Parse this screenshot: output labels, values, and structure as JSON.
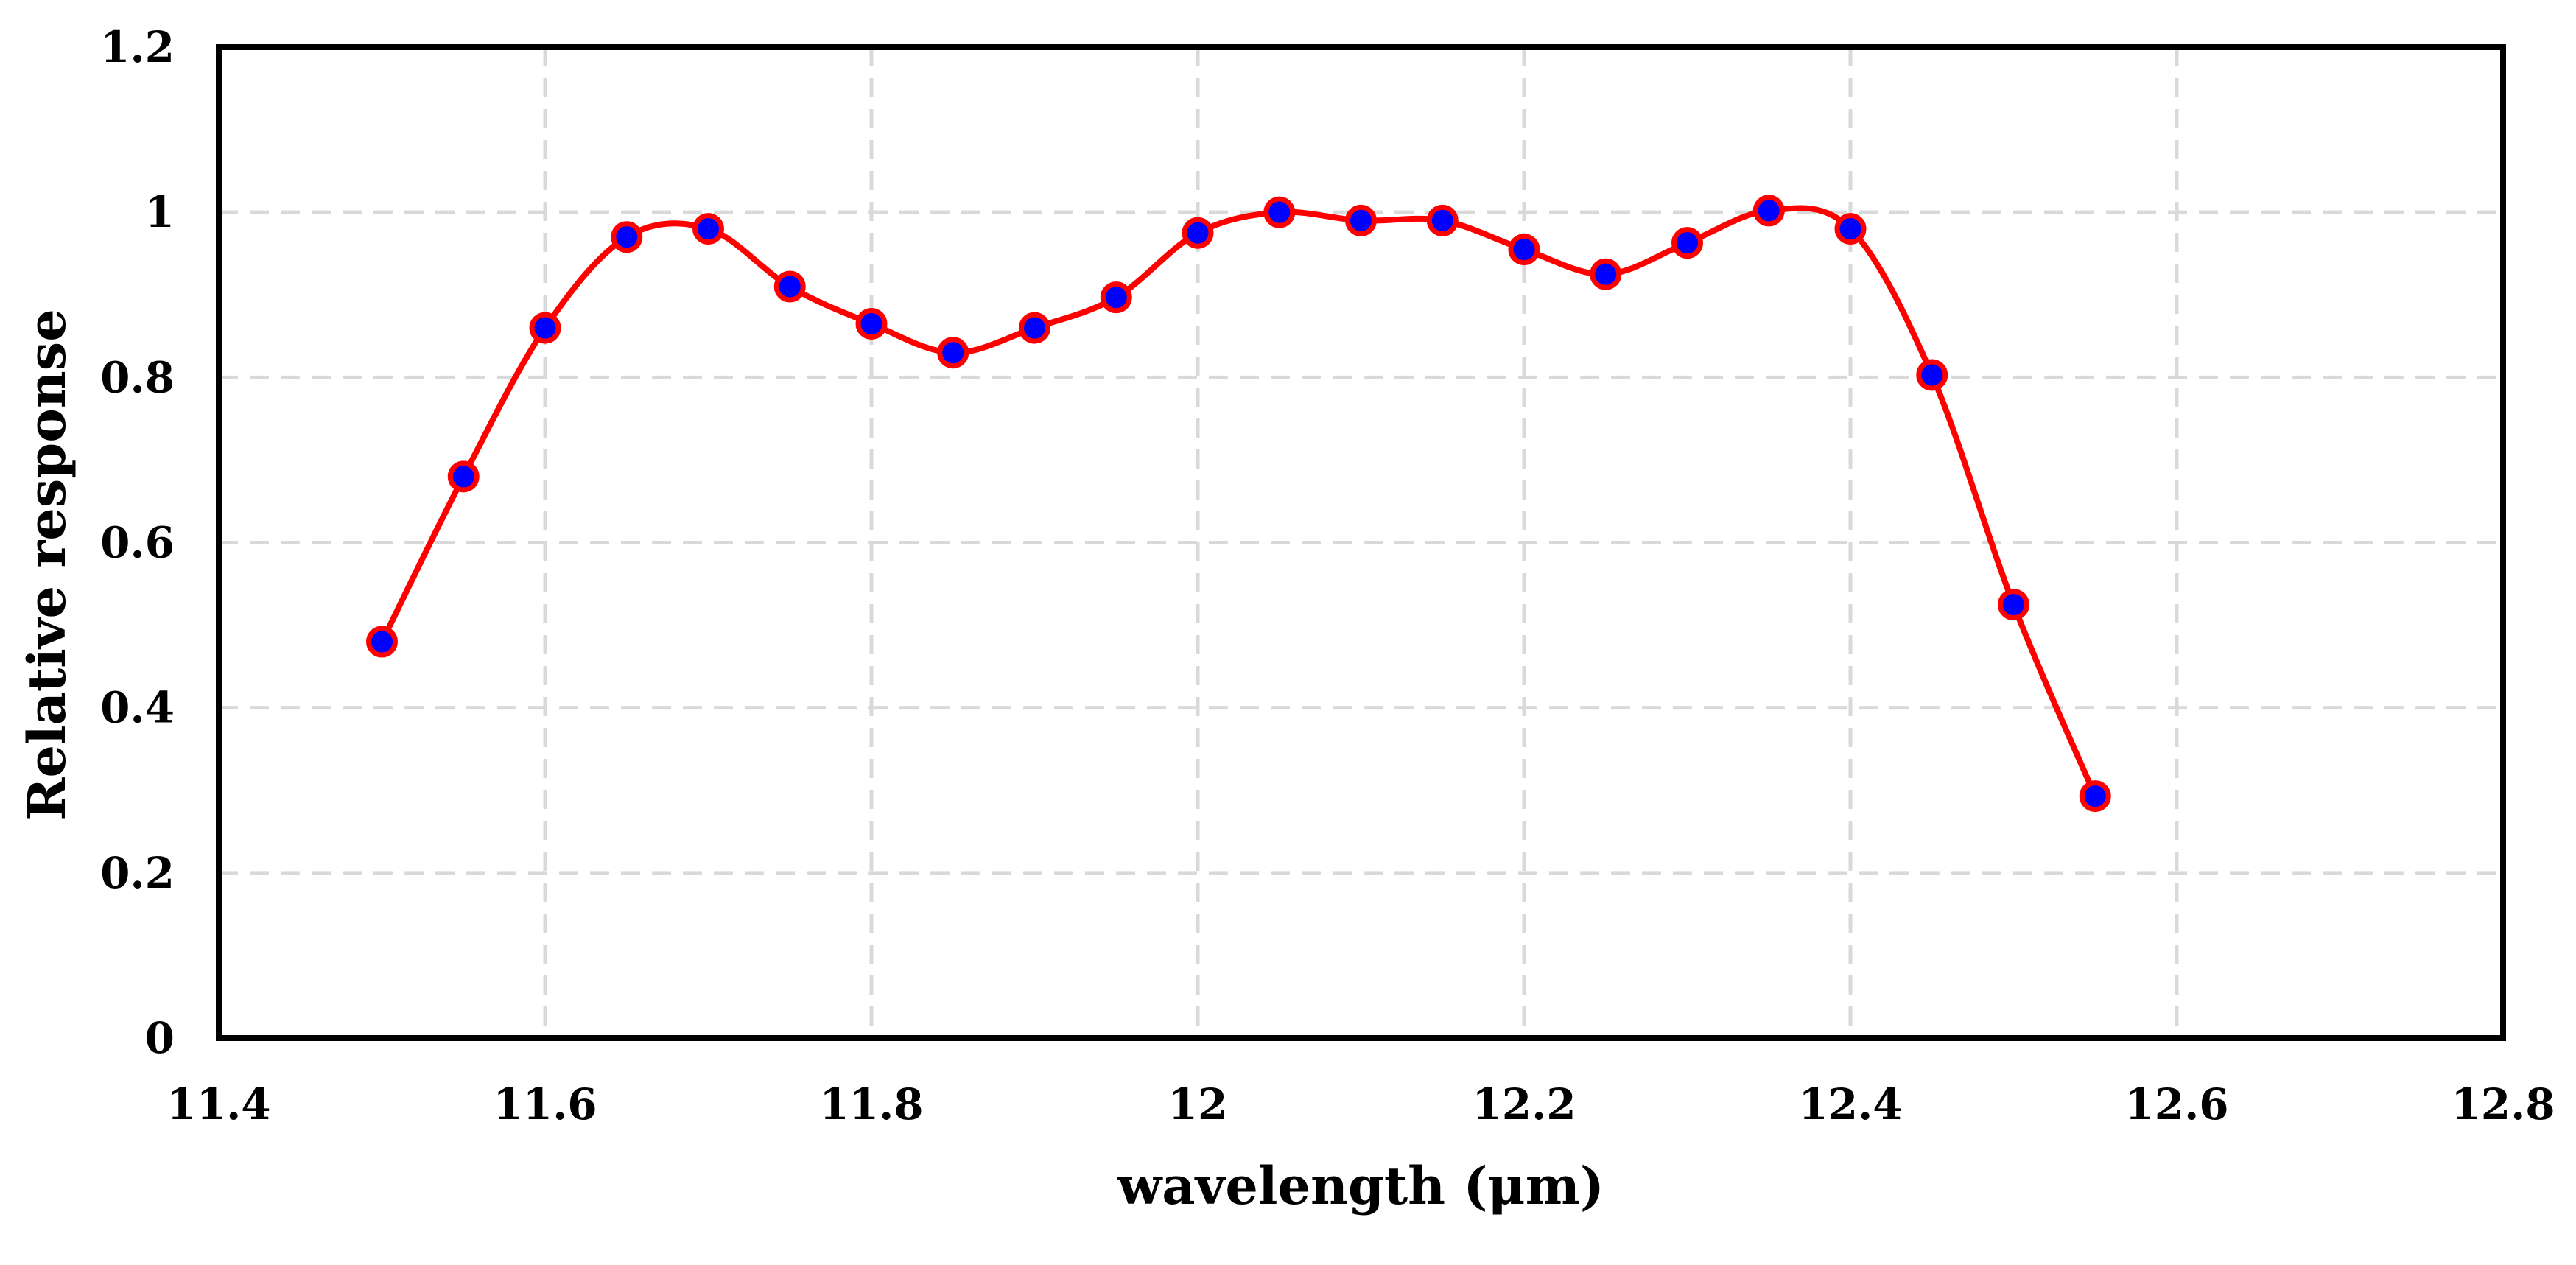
{
  "chart_data": {
    "type": "line",
    "title": "",
    "xlabel": "wavelength (μm)",
    "ylabel": "Relative response",
    "xlim": [
      11.4,
      12.8
    ],
    "ylim": [
      0,
      1.2
    ],
    "x_ticks": [
      11.4,
      11.6,
      11.8,
      12.0,
      12.2,
      12.4,
      12.6,
      12.8
    ],
    "x_tick_labels": [
      "11.4",
      "11.6",
      "11.8",
      "12",
      "12.2",
      "12.4",
      "12.6",
      "12.8"
    ],
    "y_ticks": [
      0,
      0.2,
      0.4,
      0.6,
      0.8,
      1.0,
      1.2
    ],
    "y_tick_labels": [
      "0",
      "0.2",
      "0.4",
      "0.6",
      "0.8",
      "1",
      "1.2"
    ],
    "grid": true,
    "series": [
      {
        "name": "Relative response",
        "line_color": "#ff0000",
        "marker_fill": "#0000ff",
        "marker_edge": "#ff0000",
        "x": [
          11.5,
          11.55,
          11.6,
          11.65,
          11.7,
          11.75,
          11.8,
          11.85,
          11.9,
          11.95,
          12.0,
          12.05,
          12.1,
          12.15,
          12.2,
          12.25,
          12.3,
          12.35,
          12.4,
          12.45,
          12.5,
          12.55
        ],
        "y": [
          0.48,
          0.68,
          0.86,
          0.97,
          0.98,
          0.91,
          0.865,
          0.83,
          0.86,
          0.897,
          0.975,
          1.0,
          0.99,
          0.99,
          0.955,
          0.925,
          0.963,
          1.002,
          0.98,
          0.803,
          0.525,
          0.293
        ]
      }
    ]
  }
}
